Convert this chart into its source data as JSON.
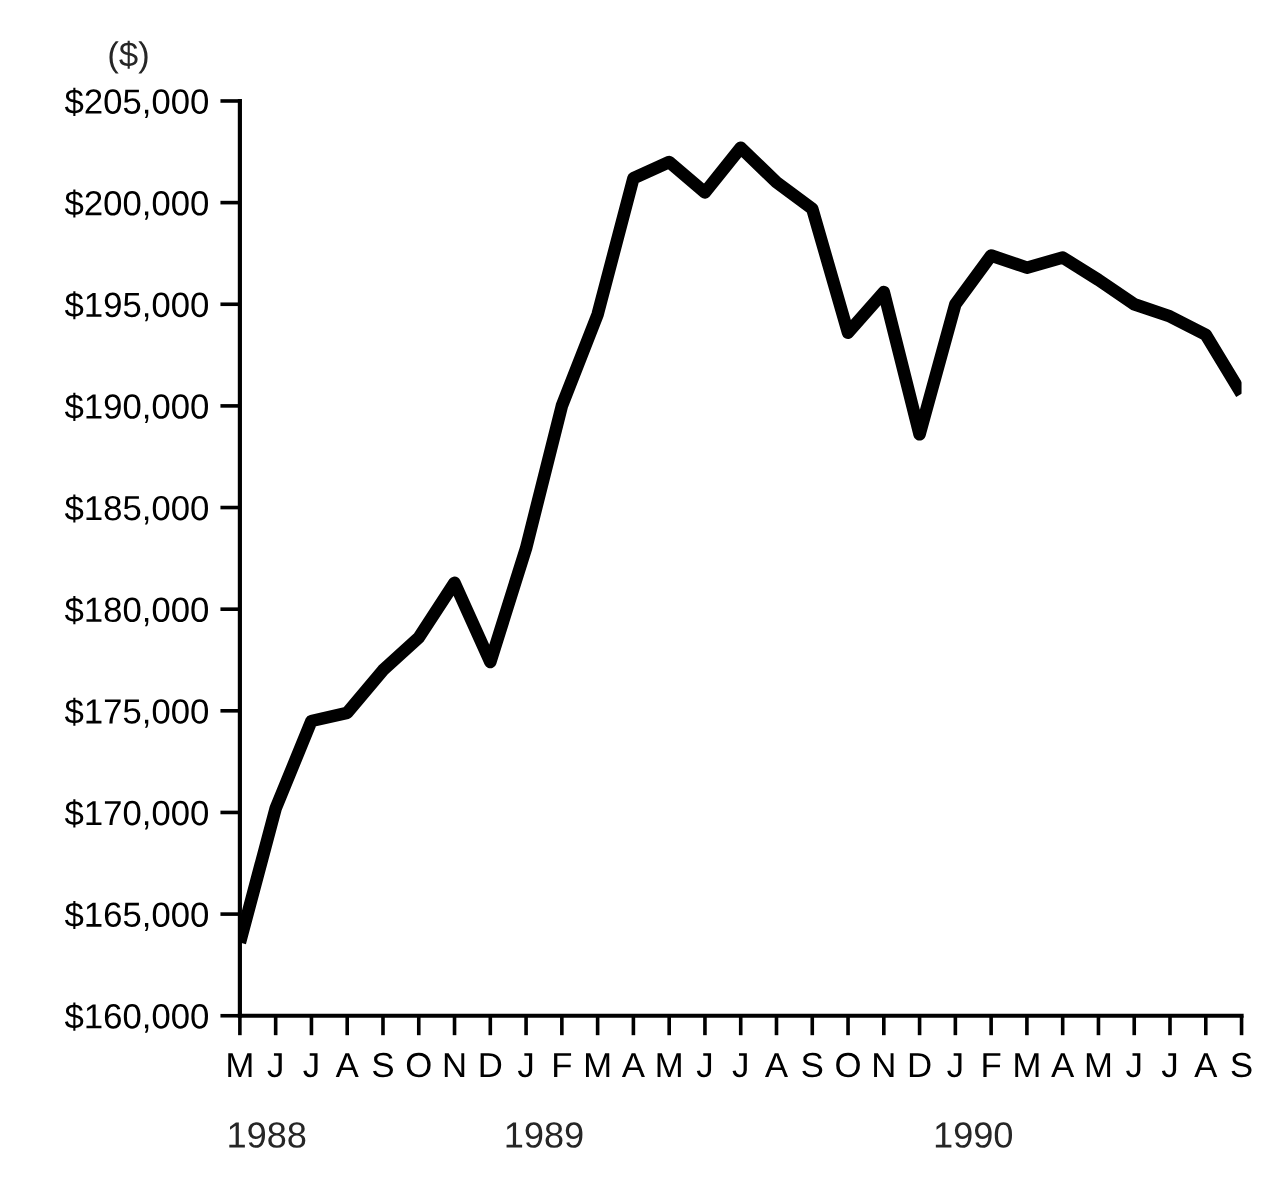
{
  "chart_data": {
    "type": "line",
    "ylabel": "($)",
    "categories": [
      "M",
      "J",
      "J",
      "A",
      "S",
      "O",
      "N",
      "D",
      "J",
      "F",
      "M",
      "A",
      "M",
      "J",
      "J",
      "A",
      "S",
      "O",
      "N",
      "D",
      "J",
      "F",
      "M",
      "A",
      "M",
      "J",
      "J",
      "A",
      "S"
    ],
    "series": [
      {
        "color": "#000000",
        "values": [
          163600,
          170200,
          174500,
          174900,
          177000,
          178600,
          181300,
          177400,
          183000,
          190000,
          194500,
          201200,
          202000,
          200500,
          202700,
          201000,
          199700,
          193600,
          195600,
          188600,
          195000,
          197400,
          196800,
          197300,
          196200,
          195000,
          194400,
          193500,
          190600
        ]
      }
    ],
    "ylim": [
      160000,
      205000
    ],
    "yticks": [
      {
        "value": 160000,
        "label": "$160,000"
      },
      {
        "value": 165000,
        "label": "$165,000"
      },
      {
        "value": 170000,
        "label": "$170,000"
      },
      {
        "value": 175000,
        "label": "$175,000"
      },
      {
        "value": 180000,
        "label": "$180,000"
      },
      {
        "value": 185000,
        "label": "$185,000"
      },
      {
        "value": 190000,
        "label": "$190,000"
      },
      {
        "value": 195000,
        "label": "$195,000"
      },
      {
        "value": 200000,
        "label": "$200,000"
      },
      {
        "value": 205000,
        "label": "$205,000"
      }
    ],
    "annotations": [
      "1988",
      "1989",
      "1990"
    ],
    "grid": false,
    "marker": "none",
    "line_style": "solid"
  }
}
